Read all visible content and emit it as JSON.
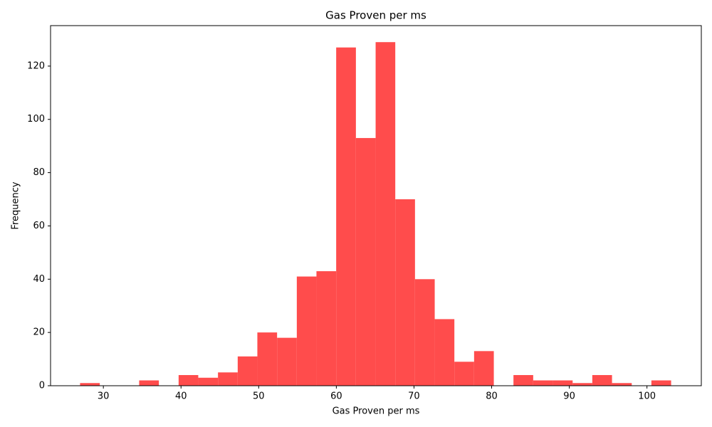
{
  "chart_data": {
    "type": "histogram",
    "title": "Gas Proven per ms",
    "x_label": "Gas Proven per ms",
    "y_label": "Frequency",
    "bins": [
      27.0,
      29.54,
      32.07,
      34.61,
      37.15,
      39.69,
      42.22,
      44.76,
      47.3,
      49.83,
      52.37,
      54.91,
      57.44,
      59.98,
      62.52,
      65.06,
      67.59,
      70.13,
      72.67,
      75.2,
      77.74,
      80.28,
      82.81,
      85.35,
      87.89,
      90.43,
      92.96,
      95.5,
      98.04,
      100.57,
      103.11
    ],
    "values": [
      1,
      0,
      0,
      2,
      0,
      4,
      3,
      5,
      11,
      20,
      18,
      41,
      43,
      127,
      93,
      129,
      70,
      40,
      25,
      9,
      13,
      0,
      4,
      2,
      2,
      1,
      4,
      1,
      0,
      2
    ],
    "color": "#ff4c4c",
    "xlim": [
      23.2,
      107
    ],
    "xticks": [
      30,
      40,
      50,
      60,
      70,
      80,
      90,
      100
    ],
    "ylim": [
      0,
      135.2
    ],
    "yticks": [
      0,
      20,
      40,
      60,
      80,
      100,
      120
    ]
  }
}
